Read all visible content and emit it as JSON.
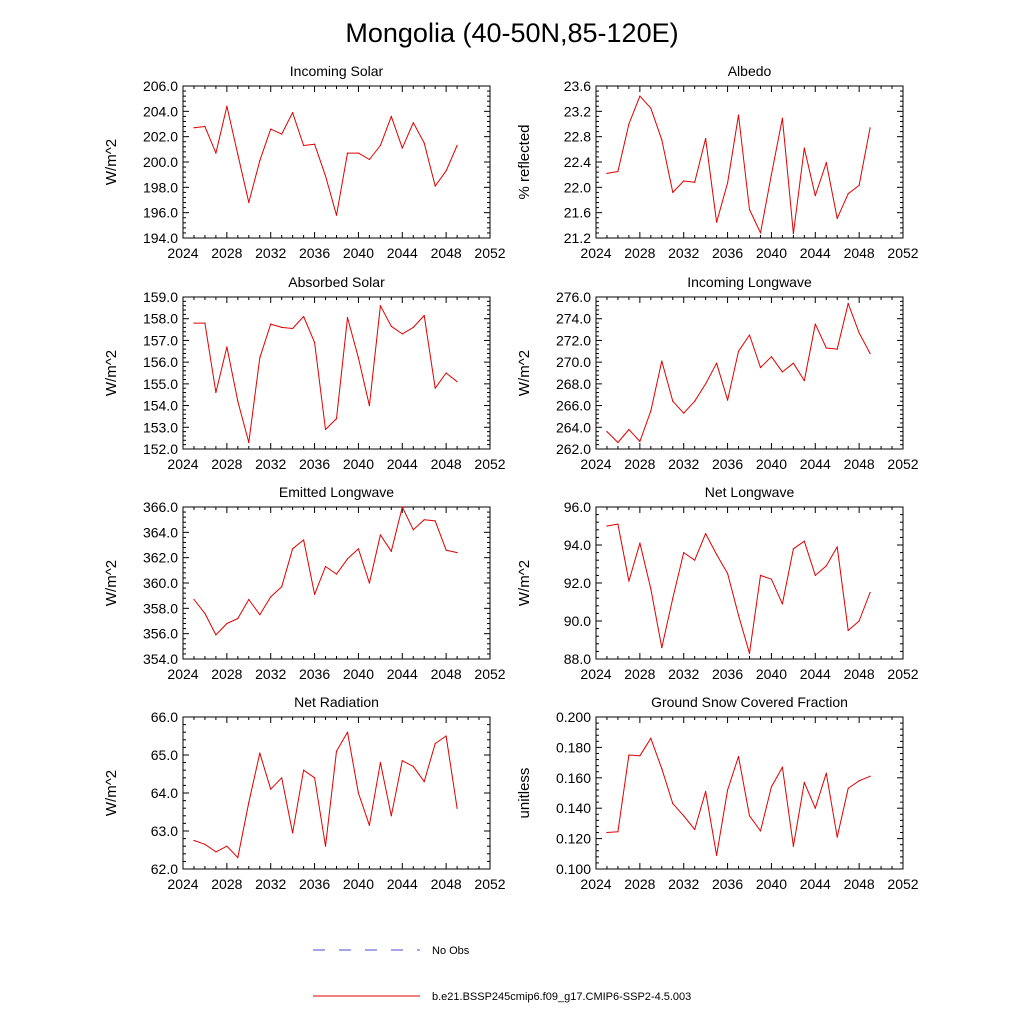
{
  "figure_title": "Mongolia (40-50N,85-120E)",
  "legend": {
    "obs_label": "No Obs",
    "model_label": "b.e21.BSSP245cmip6.f09_g17.CMIP6-SSP2-4.5.003",
    "obs_color": "#4a4ad0",
    "model_color": "#e00000"
  },
  "chart_data": [
    {
      "type": "line",
      "title": "Incoming Solar",
      "ylabel": "W/m^2",
      "xlim": [
        2024,
        2052
      ],
      "ylim": [
        194,
        206
      ],
      "xticks": [
        2024,
        2028,
        2032,
        2036,
        2040,
        2044,
        2048,
        2052
      ],
      "xtick_labels": [
        "2024",
        "2028",
        "2032",
        "2036",
        "2040",
        "2044",
        "2048",
        "2052"
      ],
      "yticks": [
        194,
        196,
        198,
        200,
        202,
        204,
        206
      ],
      "ytick_labels": [
        "194.0",
        "196.0",
        "198.0",
        "200.0",
        "202.0",
        "204.0",
        "206.0"
      ],
      "x": [
        2025,
        2026,
        2027,
        2028,
        2029,
        2030,
        2031,
        2032,
        2033,
        2034,
        2035,
        2036,
        2037,
        2038,
        2039,
        2040,
        2041,
        2042,
        2043,
        2044,
        2045,
        2046,
        2047,
        2048,
        2049
      ],
      "series": [
        {
          "name": "b.e21.BSSP245cmip6.f09_g17.CMIP6-SSP2-4.5.003",
          "values": [
            202.7,
            202.8,
            200.7,
            204.4,
            200.6,
            196.8,
            200.1,
            202.6,
            202.2,
            203.9,
            201.3,
            201.4,
            198.9,
            195.8,
            200.7,
            200.7,
            200.2,
            201.3,
            203.6,
            201.1,
            203.1,
            201.5,
            198.1,
            199.3,
            201.3
          ]
        }
      ]
    },
    {
      "type": "line",
      "title": "Albedo",
      "ylabel": "% reflected",
      "xlim": [
        2024,
        2052
      ],
      "ylim": [
        21.2,
        23.6
      ],
      "xticks": [
        2024,
        2028,
        2032,
        2036,
        2040,
        2044,
        2048,
        2052
      ],
      "xtick_labels": [
        "2024",
        "2028",
        "2032",
        "2036",
        "2040",
        "2044",
        "2048",
        "2052"
      ],
      "yticks": [
        21.2,
        21.6,
        22.0,
        22.4,
        22.8,
        23.2,
        23.6
      ],
      "ytick_labels": [
        "21.2",
        "21.6",
        "22.0",
        "22.4",
        "22.8",
        "23.2",
        "23.6"
      ],
      "x": [
        2025,
        2026,
        2027,
        2028,
        2029,
        2030,
        2031,
        2032,
        2033,
        2034,
        2035,
        2036,
        2037,
        2038,
        2039,
        2040,
        2041,
        2042,
        2043,
        2044,
        2045,
        2046,
        2047,
        2048,
        2049
      ],
      "series": [
        {
          "name": "b.e21.BSSP245cmip6.f09_g17.CMIP6-SSP2-4.5.003",
          "values": [
            22.22,
            22.25,
            23.0,
            23.44,
            23.25,
            22.75,
            21.92,
            22.1,
            22.08,
            22.77,
            21.45,
            22.07,
            23.14,
            21.65,
            21.28,
            22.2,
            23.09,
            21.27,
            22.62,
            21.87,
            22.39,
            21.51,
            21.9,
            22.03,
            22.94
          ]
        }
      ]
    },
    {
      "type": "line",
      "title": "Absorbed Solar",
      "ylabel": "W/m^2",
      "xlim": [
        2024,
        2052
      ],
      "ylim": [
        152,
        159
      ],
      "xticks": [
        2024,
        2028,
        2032,
        2036,
        2040,
        2044,
        2048,
        2052
      ],
      "xtick_labels": [
        "2024",
        "2028",
        "2032",
        "2036",
        "2040",
        "2044",
        "2048",
        "2052"
      ],
      "yticks": [
        152,
        153,
        154,
        155,
        156,
        157,
        158,
        159
      ],
      "ytick_labels": [
        "152.0",
        "153.0",
        "154.0",
        "155.0",
        "156.0",
        "157.0",
        "158.0",
        "159.0"
      ],
      "x": [
        2025,
        2026,
        2027,
        2028,
        2029,
        2030,
        2031,
        2032,
        2033,
        2034,
        2035,
        2036,
        2037,
        2038,
        2039,
        2040,
        2041,
        2042,
        2043,
        2044,
        2045,
        2046,
        2047,
        2048,
        2049
      ],
      "series": [
        {
          "name": "b.e21.BSSP245cmip6.f09_g17.CMIP6-SSP2-4.5.003",
          "values": [
            157.8,
            157.8,
            154.6,
            156.7,
            154.2,
            152.3,
            156.2,
            157.75,
            157.6,
            157.55,
            158.1,
            156.9,
            152.9,
            153.4,
            158.05,
            156.2,
            154.0,
            158.6,
            157.65,
            157.3,
            157.6,
            158.15,
            154.8,
            155.5,
            155.1
          ]
        }
      ]
    },
    {
      "type": "line",
      "title": "Incoming Longwave",
      "ylabel": "W/m^2",
      "xlim": [
        2024,
        2052
      ],
      "ylim": [
        262,
        276
      ],
      "xticks": [
        2024,
        2028,
        2032,
        2036,
        2040,
        2044,
        2048,
        2052
      ],
      "xtick_labels": [
        "2024",
        "2028",
        "2032",
        "2036",
        "2040",
        "2044",
        "2048",
        "2052"
      ],
      "yticks": [
        262,
        264,
        266,
        268,
        270,
        272,
        274,
        276
      ],
      "ytick_labels": [
        "262.0",
        "264.0",
        "266.0",
        "268.0",
        "270.0",
        "272.0",
        "274.0",
        "276.0"
      ],
      "x": [
        2025,
        2026,
        2027,
        2028,
        2029,
        2030,
        2031,
        2032,
        2033,
        2034,
        2035,
        2036,
        2037,
        2038,
        2039,
        2040,
        2041,
        2042,
        2043,
        2044,
        2045,
        2046,
        2047,
        2048,
        2049
      ],
      "series": [
        {
          "name": "b.e21.BSSP245cmip6.f09_g17.CMIP6-SSP2-4.5.003",
          "values": [
            263.6,
            262.6,
            263.8,
            262.7,
            265.5,
            270.1,
            266.4,
            265.3,
            266.4,
            268.0,
            269.9,
            266.5,
            271.0,
            272.5,
            269.5,
            270.5,
            269.1,
            269.9,
            268.3,
            273.5,
            271.3,
            271.2,
            275.4,
            272.7,
            270.8
          ]
        }
      ]
    },
    {
      "type": "line",
      "title": "Emitted Longwave",
      "ylabel": "W/m^2",
      "xlim": [
        2024,
        2052
      ],
      "ylim": [
        354,
        366
      ],
      "xticks": [
        2024,
        2028,
        2032,
        2036,
        2040,
        2044,
        2048,
        2052
      ],
      "xtick_labels": [
        "2024",
        "2028",
        "2032",
        "2036",
        "2040",
        "2044",
        "2048",
        "2052"
      ],
      "yticks": [
        354,
        356,
        358,
        360,
        362,
        364,
        366
      ],
      "ytick_labels": [
        "354.0",
        "356.0",
        "358.0",
        "360.0",
        "362.0",
        "364.0",
        "366.0"
      ],
      "x": [
        2025,
        2026,
        2027,
        2028,
        2029,
        2030,
        2031,
        2032,
        2033,
        2034,
        2035,
        2036,
        2037,
        2038,
        2039,
        2040,
        2041,
        2042,
        2043,
        2044,
        2045,
        2046,
        2047,
        2048,
        2049
      ],
      "series": [
        {
          "name": "b.e21.BSSP245cmip6.f09_g17.CMIP6-SSP2-4.5.003",
          "values": [
            358.7,
            357.6,
            355.9,
            356.8,
            357.2,
            358.7,
            357.5,
            358.9,
            359.7,
            362.7,
            363.4,
            359.1,
            361.3,
            360.7,
            361.9,
            362.7,
            360.0,
            363.8,
            362.5,
            366.0,
            364.2,
            365.0,
            364.9,
            362.6,
            362.4
          ]
        }
      ]
    },
    {
      "type": "line",
      "title": "Net Longwave",
      "ylabel": "W/m^2",
      "xlim": [
        2024,
        2052
      ],
      "ylim": [
        88,
        96
      ],
      "xticks": [
        2024,
        2028,
        2032,
        2036,
        2040,
        2044,
        2048,
        2052
      ],
      "xtick_labels": [
        "2024",
        "2028",
        "2032",
        "2036",
        "2040",
        "2044",
        "2048",
        "2052"
      ],
      "yticks": [
        88,
        90,
        92,
        94,
        96
      ],
      "ytick_labels": [
        "88.0",
        "90.0",
        "92.0",
        "94.0",
        "96.0"
      ],
      "x": [
        2025,
        2026,
        2027,
        2028,
        2029,
        2030,
        2031,
        2032,
        2033,
        2034,
        2035,
        2036,
        2037,
        2038,
        2039,
        2040,
        2041,
        2042,
        2043,
        2044,
        2045,
        2046,
        2047,
        2048,
        2049
      ],
      "series": [
        {
          "name": "b.e21.BSSP245cmip6.f09_g17.CMIP6-SSP2-4.5.003",
          "values": [
            95.0,
            95.1,
            92.1,
            94.1,
            91.7,
            88.6,
            91.2,
            93.6,
            93.2,
            94.6,
            93.5,
            92.5,
            90.3,
            88.3,
            92.4,
            92.2,
            90.9,
            93.8,
            94.2,
            92.4,
            92.9,
            93.9,
            89.5,
            90.0,
            91.5
          ]
        }
      ]
    },
    {
      "type": "line",
      "title": "Net Radiation",
      "ylabel": "W/m^2",
      "xlim": [
        2024,
        2052
      ],
      "ylim": [
        62,
        66
      ],
      "xticks": [
        2024,
        2028,
        2032,
        2036,
        2040,
        2044,
        2048,
        2052
      ],
      "xtick_labels": [
        "2024",
        "2028",
        "2032",
        "2036",
        "2040",
        "2044",
        "2048",
        "2052"
      ],
      "yticks": [
        62,
        63,
        64,
        65,
        66
      ],
      "ytick_labels": [
        "62.0",
        "63.0",
        "64.0",
        "65.0",
        "66.0"
      ],
      "x": [
        2025,
        2026,
        2027,
        2028,
        2029,
        2030,
        2031,
        2032,
        2033,
        2034,
        2035,
        2036,
        2037,
        2038,
        2039,
        2040,
        2041,
        2042,
        2043,
        2044,
        2045,
        2046,
        2047,
        2048,
        2049
      ],
      "series": [
        {
          "name": "b.e21.BSSP245cmip6.f09_g17.CMIP6-SSP2-4.5.003",
          "values": [
            62.75,
            62.65,
            62.45,
            62.6,
            62.3,
            63.75,
            65.05,
            64.1,
            64.4,
            62.95,
            64.6,
            64.4,
            62.6,
            65.1,
            65.6,
            64.0,
            63.15,
            64.8,
            63.4,
            64.85,
            64.7,
            64.3,
            65.3,
            65.5,
            63.6
          ]
        }
      ]
    },
    {
      "type": "line",
      "title": "Ground Snow Covered Fraction",
      "ylabel": "unitless",
      "xlim": [
        2024,
        2052
      ],
      "ylim": [
        0.1,
        0.2
      ],
      "xticks": [
        2024,
        2028,
        2032,
        2036,
        2040,
        2044,
        2048,
        2052
      ],
      "xtick_labels": [
        "2024",
        "2028",
        "2032",
        "2036",
        "2040",
        "2044",
        "2048",
        "2052"
      ],
      "yticks": [
        0.1,
        0.12,
        0.14,
        0.16,
        0.18,
        0.2
      ],
      "ytick_labels": [
        "0.100",
        "0.120",
        "0.140",
        "0.160",
        "0.180",
        "0.200"
      ],
      "x": [
        2025,
        2026,
        2027,
        2028,
        2029,
        2030,
        2031,
        2032,
        2033,
        2034,
        2035,
        2036,
        2037,
        2038,
        2039,
        2040,
        2041,
        2042,
        2043,
        2044,
        2045,
        2046,
        2047,
        2048,
        2049
      ],
      "series": [
        {
          "name": "b.e21.BSSP245cmip6.f09_g17.CMIP6-SSP2-4.5.003",
          "values": [
            0.124,
            0.1245,
            0.175,
            0.1745,
            0.186,
            0.166,
            0.143,
            0.135,
            0.126,
            0.151,
            0.109,
            0.152,
            0.174,
            0.135,
            0.125,
            0.154,
            0.167,
            0.115,
            0.157,
            0.14,
            0.163,
            0.121,
            0.153,
            0.158,
            0.161
          ]
        }
      ]
    }
  ]
}
